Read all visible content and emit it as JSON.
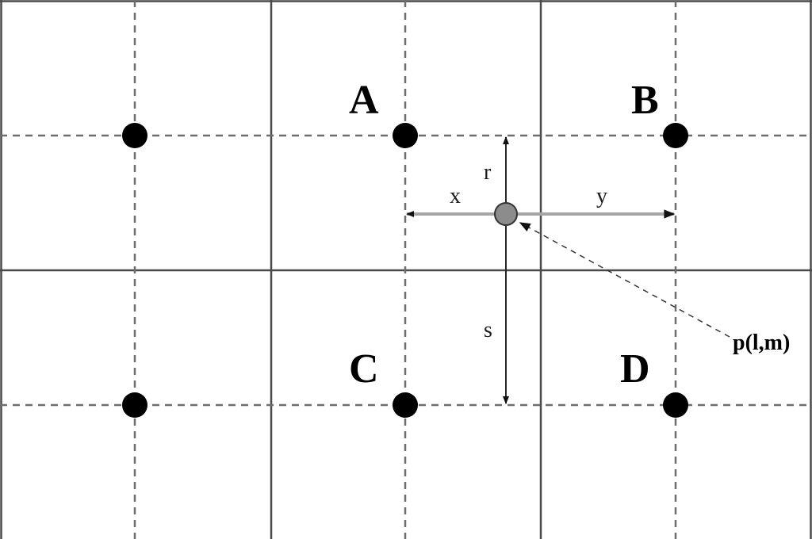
{
  "labels": {
    "A": "A",
    "B": "B",
    "C": "C",
    "D": "D",
    "r": "r",
    "s": "s",
    "x": "x",
    "y": "y",
    "point": "p(l,m)"
  },
  "colors": {
    "node": "#000000",
    "sample_point": "#8c8c8c",
    "solid_grid": "#4a4a4a",
    "dashed_grid": "#6e6e6e",
    "horizontal_arrows": "#a6a6a6"
  }
}
